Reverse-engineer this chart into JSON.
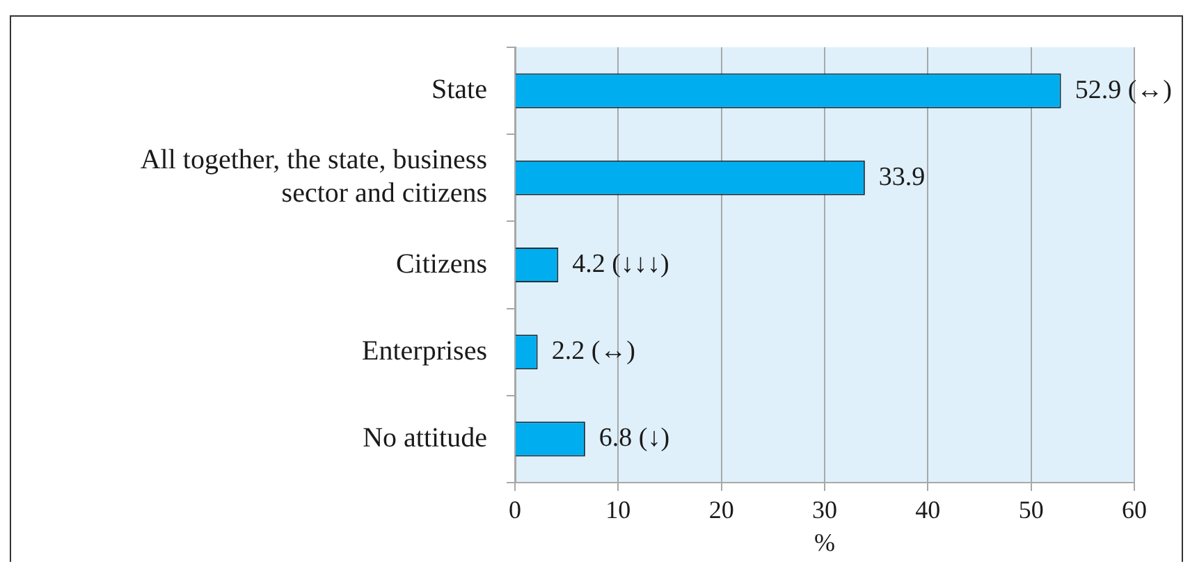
{
  "chart_data": {
    "type": "bar",
    "orientation": "horizontal",
    "categories": [
      "State",
      "All together, the state, business sector and citizens",
      "Citizens",
      "Enterprises",
      "No attitude"
    ],
    "values": [
      52.9,
      33.9,
      4.2,
      2.2,
      6.8
    ],
    "color": "#00aeef",
    "value_labels": [
      "52.9 (↔)",
      "33.9",
      "4.2 (↓↓↓)",
      "2.2 (↔)",
      "6.8 (↓)"
    ],
    "xlim": [
      0,
      60
    ],
    "xticks": [
      0,
      10,
      20,
      30,
      40,
      50,
      60
    ],
    "xlabel": "%",
    "grid": "x"
  }
}
